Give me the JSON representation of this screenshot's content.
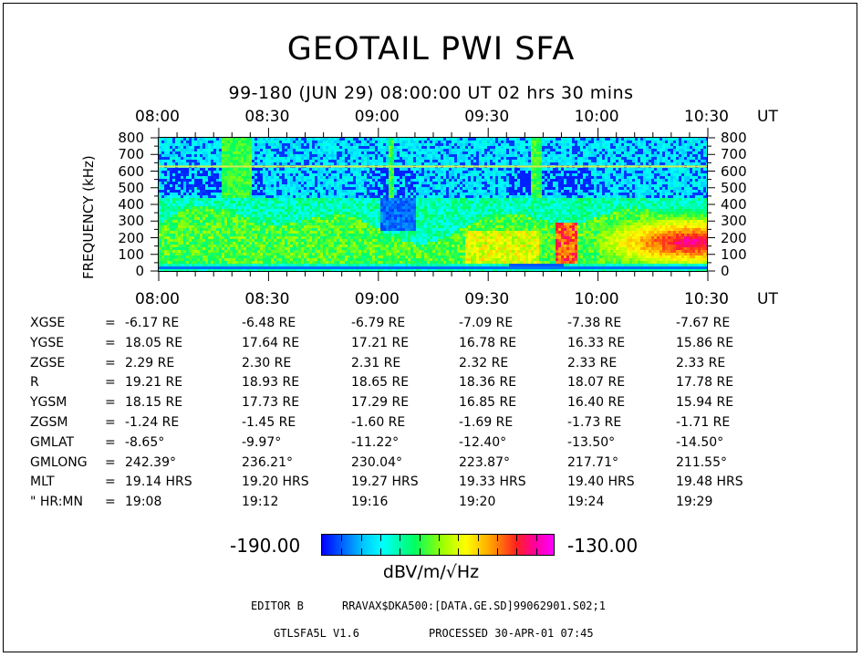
{
  "title": "GEOTAIL PWI SFA",
  "subtitle": "99-180 (JUN 29) 08:00:00 UT    02 hrs  30 mins",
  "time_axis": {
    "labels": [
      "08:00",
      "08:30",
      "09:00",
      "09:30",
      "10:00",
      "10:30"
    ],
    "unit": "UT"
  },
  "chart_data": {
    "type": "heatmap",
    "title": "GEOTAIL PWI SFA",
    "ylabel": "FREQUENCY (kHz)",
    "xlabel": "UT",
    "x_range": [
      "08:00",
      "10:30"
    ],
    "ylim": [
      0,
      800
    ],
    "yticks": [
      0,
      100,
      200,
      300,
      400,
      500,
      600,
      700,
      800
    ],
    "colorbar": {
      "min": -190.0,
      "max": -130.0,
      "min_label": "-190.00",
      "max_label": "-130.00",
      "unit": "dBV/m/√Hz"
    },
    "features": [
      {
        "desc": "interference line",
        "freq_khz": 630
      },
      {
        "desc": "plasma line",
        "freq_khz": 40
      },
      {
        "desc": "intense emission",
        "time_range": [
          "10:05",
          "10:30"
        ],
        "freq_range_khz": [
          50,
          350
        ]
      }
    ]
  },
  "ephemeris": {
    "rows": [
      {
        "label": "XGSE",
        "eq": "=",
        "values": [
          "-6.17 RE",
          "-6.48 RE",
          "-6.79 RE",
          "-7.09 RE",
          "-7.38 RE",
          "-7.67 RE"
        ]
      },
      {
        "label": "YGSE",
        "eq": "=",
        "values": [
          "18.05 RE",
          "17.64 RE",
          "17.21 RE",
          "16.78 RE",
          "16.33 RE",
          "15.86 RE"
        ]
      },
      {
        "label": "ZGSE",
        "eq": "=",
        "values": [
          "2.29 RE",
          "2.30 RE",
          "2.31 RE",
          "2.32 RE",
          "2.33 RE",
          "2.33 RE"
        ]
      },
      {
        "label": "R",
        "eq": "=",
        "values": [
          "19.21 RE",
          "18.93 RE",
          "18.65 RE",
          "18.36 RE",
          "18.07 RE",
          "17.78 RE"
        ]
      },
      {
        "label": "YGSM",
        "eq": "=",
        "values": [
          "18.15 RE",
          "17.73 RE",
          "17.29 RE",
          "16.85 RE",
          "16.40 RE",
          "15.94 RE"
        ]
      },
      {
        "label": "ZGSM",
        "eq": "=",
        "values": [
          "-1.24 RE",
          "-1.45 RE",
          "-1.60 RE",
          "-1.69 RE",
          "-1.73 RE",
          "-1.71 RE"
        ]
      },
      {
        "label": "GMLAT",
        "eq": "=",
        "values": [
          "-8.65°",
          "-9.97°",
          "-11.22°",
          "-12.40°",
          "-13.50°",
          "-14.50°"
        ]
      },
      {
        "label": "GMLONG",
        "eq": "=",
        "values": [
          "242.39°",
          "236.21°",
          "230.04°",
          "223.87°",
          "217.71°",
          "211.55°"
        ]
      },
      {
        "label": "MLT",
        "eq": "=",
        "values": [
          "19.14 HRS",
          "19.20 HRS",
          "19.27 HRS",
          "19.33 HRS",
          "19.40 HRS",
          "19.48 HRS"
        ]
      },
      {
        "label": "\" HR:MN",
        "eq": "=",
        "values": [
          "19:08",
          "19:12",
          "19:16",
          "19:20",
          "19:24",
          "19:29"
        ]
      }
    ]
  },
  "footer": {
    "editor": "EDITOR B",
    "file": "RRAVAX$DKA500:[DATA.GE.SD]99062901.S02;1",
    "program": "GTLSFA5L V1.6",
    "processed": "PROCESSED 30-APR-01  07:45"
  },
  "colors": {
    "low": "#0000ff",
    "mid": "#ffff00",
    "high": "#ff00ff",
    "background": "#ffffff"
  }
}
